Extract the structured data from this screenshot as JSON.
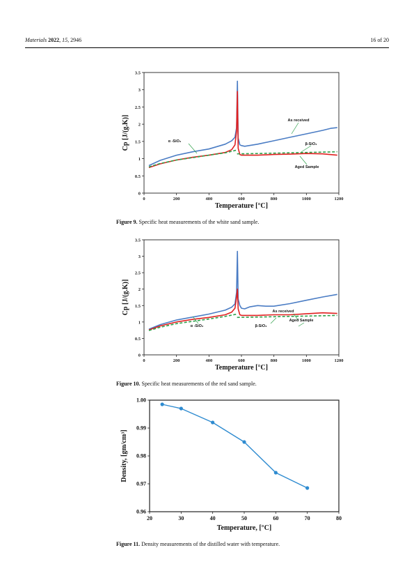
{
  "header": {
    "journal": "Materials",
    "year": "2022",
    "volume": "15",
    "article": "2946",
    "page": "16 of 20"
  },
  "figures": [
    {
      "caption_label": "Figure 9.",
      "caption_text": " Specific heat measurements of the white sand sample."
    },
    {
      "caption_label": "Figure 10.",
      "caption_text": " Specific heat measurements of the red sand sample."
    },
    {
      "caption_label": "Figure 11.",
      "caption_text": " Density measurements of the distilled water with temperature."
    }
  ],
  "chart_data": [
    {
      "type": "line",
      "xlabel": "Temperature [°C]",
      "ylabel": "Cp [J/(g.K)]",
      "xlim": [
        0,
        1200
      ],
      "ylim": [
        0,
        3.5
      ],
      "xticks": [
        "0",
        "200",
        "400",
        "600",
        "800",
        "1000",
        "1200"
      ],
      "yticks": [
        "0",
        "0.5",
        "1",
        "1.5",
        "2",
        "2.5",
        "3",
        "3.5"
      ],
      "grid": false,
      "annotations": [
        "As received",
        "α -SiO₂",
        "β-SiO₂",
        "Aged Sample"
      ],
      "series": [
        {
          "name": "As received",
          "color": "#4a7cc4",
          "x": [
            30,
            100,
            200,
            300,
            400,
            500,
            540,
            560,
            570,
            575,
            580,
            590,
            600,
            620,
            700,
            800,
            900,
            1000,
            1100,
            1150,
            1190
          ],
          "y": [
            0.8,
            0.95,
            1.1,
            1.2,
            1.28,
            1.42,
            1.52,
            1.62,
            1.9,
            3.25,
            1.6,
            1.4,
            1.38,
            1.36,
            1.42,
            1.52,
            1.62,
            1.72,
            1.82,
            1.88,
            1.9
          ]
        },
        {
          "name": "Aged Sample",
          "color": "#e02020",
          "x": [
            30,
            100,
            200,
            300,
            400,
            500,
            540,
            560,
            570,
            575,
            580,
            590,
            600,
            700,
            800,
            900,
            1000,
            1100,
            1190
          ],
          "y": [
            0.74,
            0.85,
            0.96,
            1.04,
            1.1,
            1.18,
            1.26,
            1.4,
            1.8,
            2.95,
            1.3,
            1.12,
            1.1,
            1.1,
            1.12,
            1.13,
            1.15,
            1.14,
            1.1
          ]
        },
        {
          "name": "α -SiO₂",
          "color": "#2ea04a",
          "dashed": true,
          "x": [
            30,
            100,
            200,
            300,
            400,
            500,
            573
          ],
          "y": [
            0.76,
            0.86,
            0.96,
            1.03,
            1.1,
            1.17,
            1.25
          ]
        },
        {
          "name": "β-SiO₂",
          "color": "#2ea04a",
          "dashed": true,
          "x": [
            573,
            700,
            800,
            900,
            1000,
            1100,
            1190
          ],
          "y": [
            1.14,
            1.15,
            1.16,
            1.17,
            1.18,
            1.19,
            1.2
          ]
        }
      ]
    },
    {
      "type": "line",
      "xlabel": "Temperature [°C]",
      "ylabel": "Cp [J/(g.K)]",
      "xlim": [
        0,
        1200
      ],
      "ylim": [
        0,
        3.5
      ],
      "xticks": [
        "0",
        "200",
        "400",
        "600",
        "800",
        "1000",
        "1200"
      ],
      "yticks": [
        "0",
        "0.5",
        "1",
        "1.5",
        "2",
        "2.5",
        "3",
        "3.5"
      ],
      "grid": false,
      "annotations": [
        "As received",
        "Aged Sample",
        "α -SiO₂",
        "β-SiO₂"
      ],
      "series": [
        {
          "name": "As received",
          "color": "#4a7cc4",
          "x": [
            30,
            100,
            200,
            300,
            400,
            500,
            540,
            560,
            570,
            575,
            580,
            590,
            600,
            620,
            650,
            700,
            750,
            800,
            900,
            1000,
            1100,
            1190
          ],
          "y": [
            0.78,
            0.92,
            1.06,
            1.15,
            1.24,
            1.36,
            1.45,
            1.55,
            1.9,
            3.15,
            1.7,
            1.5,
            1.42,
            1.4,
            1.46,
            1.5,
            1.48,
            1.48,
            1.56,
            1.66,
            1.76,
            1.84
          ]
        },
        {
          "name": "Aged Sample",
          "color": "#e02020",
          "x": [
            30,
            100,
            200,
            300,
            400,
            500,
            540,
            560,
            570,
            575,
            580,
            590,
            600,
            700,
            800,
            900,
            1000,
            1100,
            1190
          ],
          "y": [
            0.76,
            0.88,
            1.0,
            1.08,
            1.14,
            1.22,
            1.3,
            1.42,
            1.75,
            2.0,
            1.4,
            1.22,
            1.2,
            1.2,
            1.22,
            1.22,
            1.25,
            1.28,
            1.26
          ]
        },
        {
          "name": "α -SiO₂",
          "color": "#2ea04a",
          "dashed": true,
          "x": [
            30,
            100,
            200,
            300,
            400,
            500,
            573
          ],
          "y": [
            0.74,
            0.84,
            0.95,
            1.02,
            1.09,
            1.17,
            1.24
          ]
        },
        {
          "name": "β-SiO₂",
          "color": "#2ea04a",
          "dashed": true,
          "x": [
            573,
            700,
            800,
            900,
            1000,
            1100,
            1190
          ],
          "y": [
            1.14,
            1.15,
            1.16,
            1.17,
            1.18,
            1.19,
            1.2
          ]
        }
      ]
    },
    {
      "type": "line",
      "xlabel": "Temperature, [°C]",
      "ylabel": "Density, [gm/cm³]",
      "xlim": [
        20,
        80
      ],
      "ylim": [
        0.96,
        1.0
      ],
      "xticks": [
        "20",
        "30",
        "40",
        "50",
        "60",
        "70",
        "80"
      ],
      "yticks": [
        "0.96",
        "0.97",
        "0.98",
        "0.99",
        "1.00"
      ],
      "grid": false,
      "series": [
        {
          "color": "#2e8bd0",
          "x": [
            24,
            30,
            40,
            50,
            60,
            70
          ],
          "y": [
            0.9985,
            0.997,
            0.992,
            0.985,
            0.974,
            0.9685
          ]
        }
      ]
    }
  ]
}
